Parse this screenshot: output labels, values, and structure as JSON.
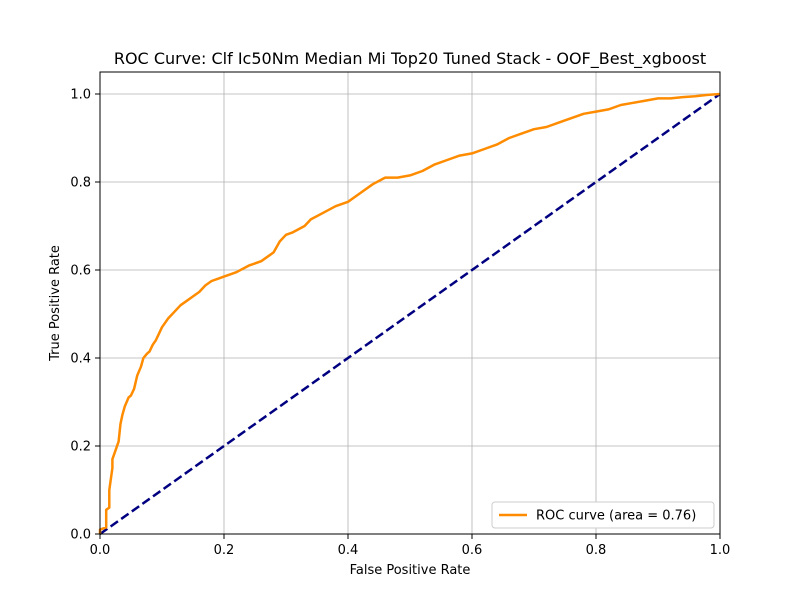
{
  "chart_data": {
    "type": "line",
    "title": "ROC Curve: Clf Ic50Nm Median Mi Top20 Tuned Stack - OOF_Best_xgboost",
    "xlabel": "False Positive Rate",
    "ylabel": "True Positive Rate",
    "xlim": [
      0,
      1
    ],
    "ylim": [
      0,
      1.05
    ],
    "grid": true,
    "legend_position": "lower-right",
    "x_ticks": [
      "0.0",
      "0.2",
      "0.4",
      "0.6",
      "0.8",
      "1.0"
    ],
    "y_ticks": [
      "0.0",
      "0.2",
      "0.4",
      "0.6",
      "0.8",
      "1.0"
    ],
    "series": [
      {
        "name": "ROC curve (area = 0.76)",
        "color": "#ff8c00",
        "style": "solid",
        "x": [
          0.0,
          0.0,
          0.01,
          0.01,
          0.015,
          0.015,
          0.02,
          0.02,
          0.025,
          0.03,
          0.033,
          0.036,
          0.04,
          0.043,
          0.046,
          0.05,
          0.055,
          0.06,
          0.063,
          0.066,
          0.07,
          0.073,
          0.076,
          0.08,
          0.085,
          0.09,
          0.095,
          0.1,
          0.105,
          0.11,
          0.12,
          0.13,
          0.14,
          0.15,
          0.16,
          0.17,
          0.18,
          0.19,
          0.2,
          0.22,
          0.24,
          0.26,
          0.27,
          0.28,
          0.29,
          0.3,
          0.31,
          0.33,
          0.34,
          0.36,
          0.38,
          0.4,
          0.42,
          0.44,
          0.46,
          0.48,
          0.5,
          0.52,
          0.54,
          0.56,
          0.58,
          0.6,
          0.62,
          0.64,
          0.66,
          0.68,
          0.7,
          0.72,
          0.74,
          0.76,
          0.78,
          0.8,
          0.82,
          0.84,
          0.86,
          0.88,
          0.9,
          0.92,
          0.94,
          0.96,
          0.98,
          1.0
        ],
        "y": [
          0.0,
          0.01,
          0.015,
          0.055,
          0.06,
          0.1,
          0.15,
          0.17,
          0.19,
          0.21,
          0.25,
          0.27,
          0.29,
          0.3,
          0.31,
          0.315,
          0.33,
          0.36,
          0.37,
          0.38,
          0.4,
          0.405,
          0.41,
          0.415,
          0.43,
          0.44,
          0.455,
          0.47,
          0.48,
          0.49,
          0.505,
          0.52,
          0.53,
          0.54,
          0.55,
          0.565,
          0.575,
          0.58,
          0.585,
          0.595,
          0.61,
          0.62,
          0.63,
          0.64,
          0.665,
          0.68,
          0.685,
          0.7,
          0.715,
          0.73,
          0.745,
          0.755,
          0.775,
          0.795,
          0.81,
          0.81,
          0.815,
          0.825,
          0.84,
          0.85,
          0.86,
          0.865,
          0.875,
          0.885,
          0.9,
          0.91,
          0.92,
          0.925,
          0.935,
          0.945,
          0.955,
          0.96,
          0.965,
          0.975,
          0.98,
          0.985,
          0.99,
          0.99,
          0.993,
          0.995,
          0.998,
          1.0
        ]
      },
      {
        "name": "",
        "color": "#000080",
        "style": "dashed",
        "x": [
          0,
          1
        ],
        "y": [
          0,
          1
        ]
      }
    ]
  }
}
